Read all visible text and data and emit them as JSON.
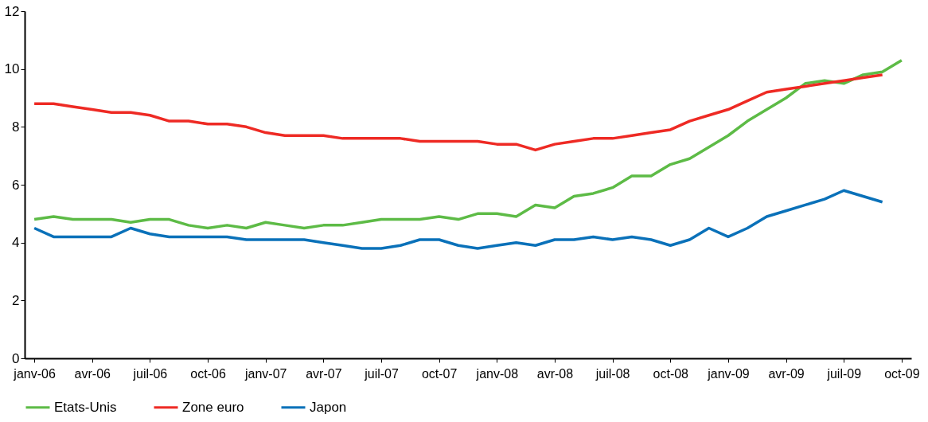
{
  "chart_data": {
    "type": "line",
    "categories": [
      "janv-06",
      null,
      null,
      "avr-06",
      null,
      null,
      "juil-06",
      null,
      null,
      "oct-06",
      null,
      null,
      "janv-07",
      null,
      null,
      "avr-07",
      null,
      null,
      "juil-07",
      null,
      null,
      "oct-07",
      null,
      null,
      "janv-08",
      null,
      null,
      "avr-08",
      null,
      null,
      "juil-08",
      null,
      null,
      "oct-08",
      null,
      null,
      "janv-09",
      null,
      null,
      "avr-09",
      null,
      null,
      "juil-09",
      null,
      null,
      "oct-09"
    ],
    "series": [
      {
        "name": "Etats-Unis",
        "color": "#5dbb46",
        "values": [
          4.8,
          4.9,
          4.8,
          4.8,
          4.8,
          4.7,
          4.8,
          4.8,
          4.6,
          4.5,
          4.6,
          4.5,
          4.7,
          4.6,
          4.5,
          4.6,
          4.6,
          4.7,
          4.8,
          4.8,
          4.8,
          4.9,
          4.8,
          5.0,
          5.0,
          4.9,
          5.3,
          5.2,
          5.6,
          5.7,
          5.9,
          6.3,
          6.3,
          6.7,
          6.9,
          7.3,
          7.7,
          8.2,
          8.6,
          9.0,
          9.5,
          9.6,
          9.5,
          9.8,
          9.9,
          10.3
        ]
      },
      {
        "name": "Zone euro",
        "color": "#ee2a24",
        "values": [
          8.8,
          8.8,
          8.7,
          8.6,
          8.5,
          8.5,
          8.4,
          8.2,
          8.2,
          8.1,
          8.1,
          8.0,
          7.8,
          7.7,
          7.7,
          7.7,
          7.6,
          7.6,
          7.6,
          7.6,
          7.5,
          7.5,
          7.5,
          7.5,
          7.4,
          7.4,
          7.2,
          7.4,
          7.5,
          7.6,
          7.6,
          7.7,
          7.8,
          7.9,
          8.2,
          8.4,
          8.6,
          8.9,
          9.2,
          9.3,
          9.4,
          9.5,
          9.6,
          9.7,
          9.8,
          null
        ]
      },
      {
        "name": "Japon",
        "color": "#0a71b9",
        "values": [
          4.5,
          4.2,
          4.2,
          4.2,
          4.2,
          4.5,
          4.3,
          4.2,
          4.2,
          4.2,
          4.2,
          4.1,
          4.1,
          4.1,
          4.1,
          4.0,
          3.9,
          3.8,
          3.8,
          3.9,
          4.1,
          4.1,
          3.9,
          3.8,
          3.9,
          4.0,
          3.9,
          4.1,
          4.1,
          4.2,
          4.1,
          4.2,
          4.1,
          3.9,
          4.1,
          4.5,
          4.2,
          4.5,
          4.9,
          5.1,
          5.3,
          5.5,
          5.8,
          5.6,
          5.4,
          null
        ]
      }
    ],
    "ylim": [
      0,
      12
    ],
    "yticks": [
      0,
      2,
      4,
      6,
      8,
      10,
      12
    ],
    "grid": false,
    "legend": "bottom",
    "marker": "none",
    "line_style": "solid"
  }
}
